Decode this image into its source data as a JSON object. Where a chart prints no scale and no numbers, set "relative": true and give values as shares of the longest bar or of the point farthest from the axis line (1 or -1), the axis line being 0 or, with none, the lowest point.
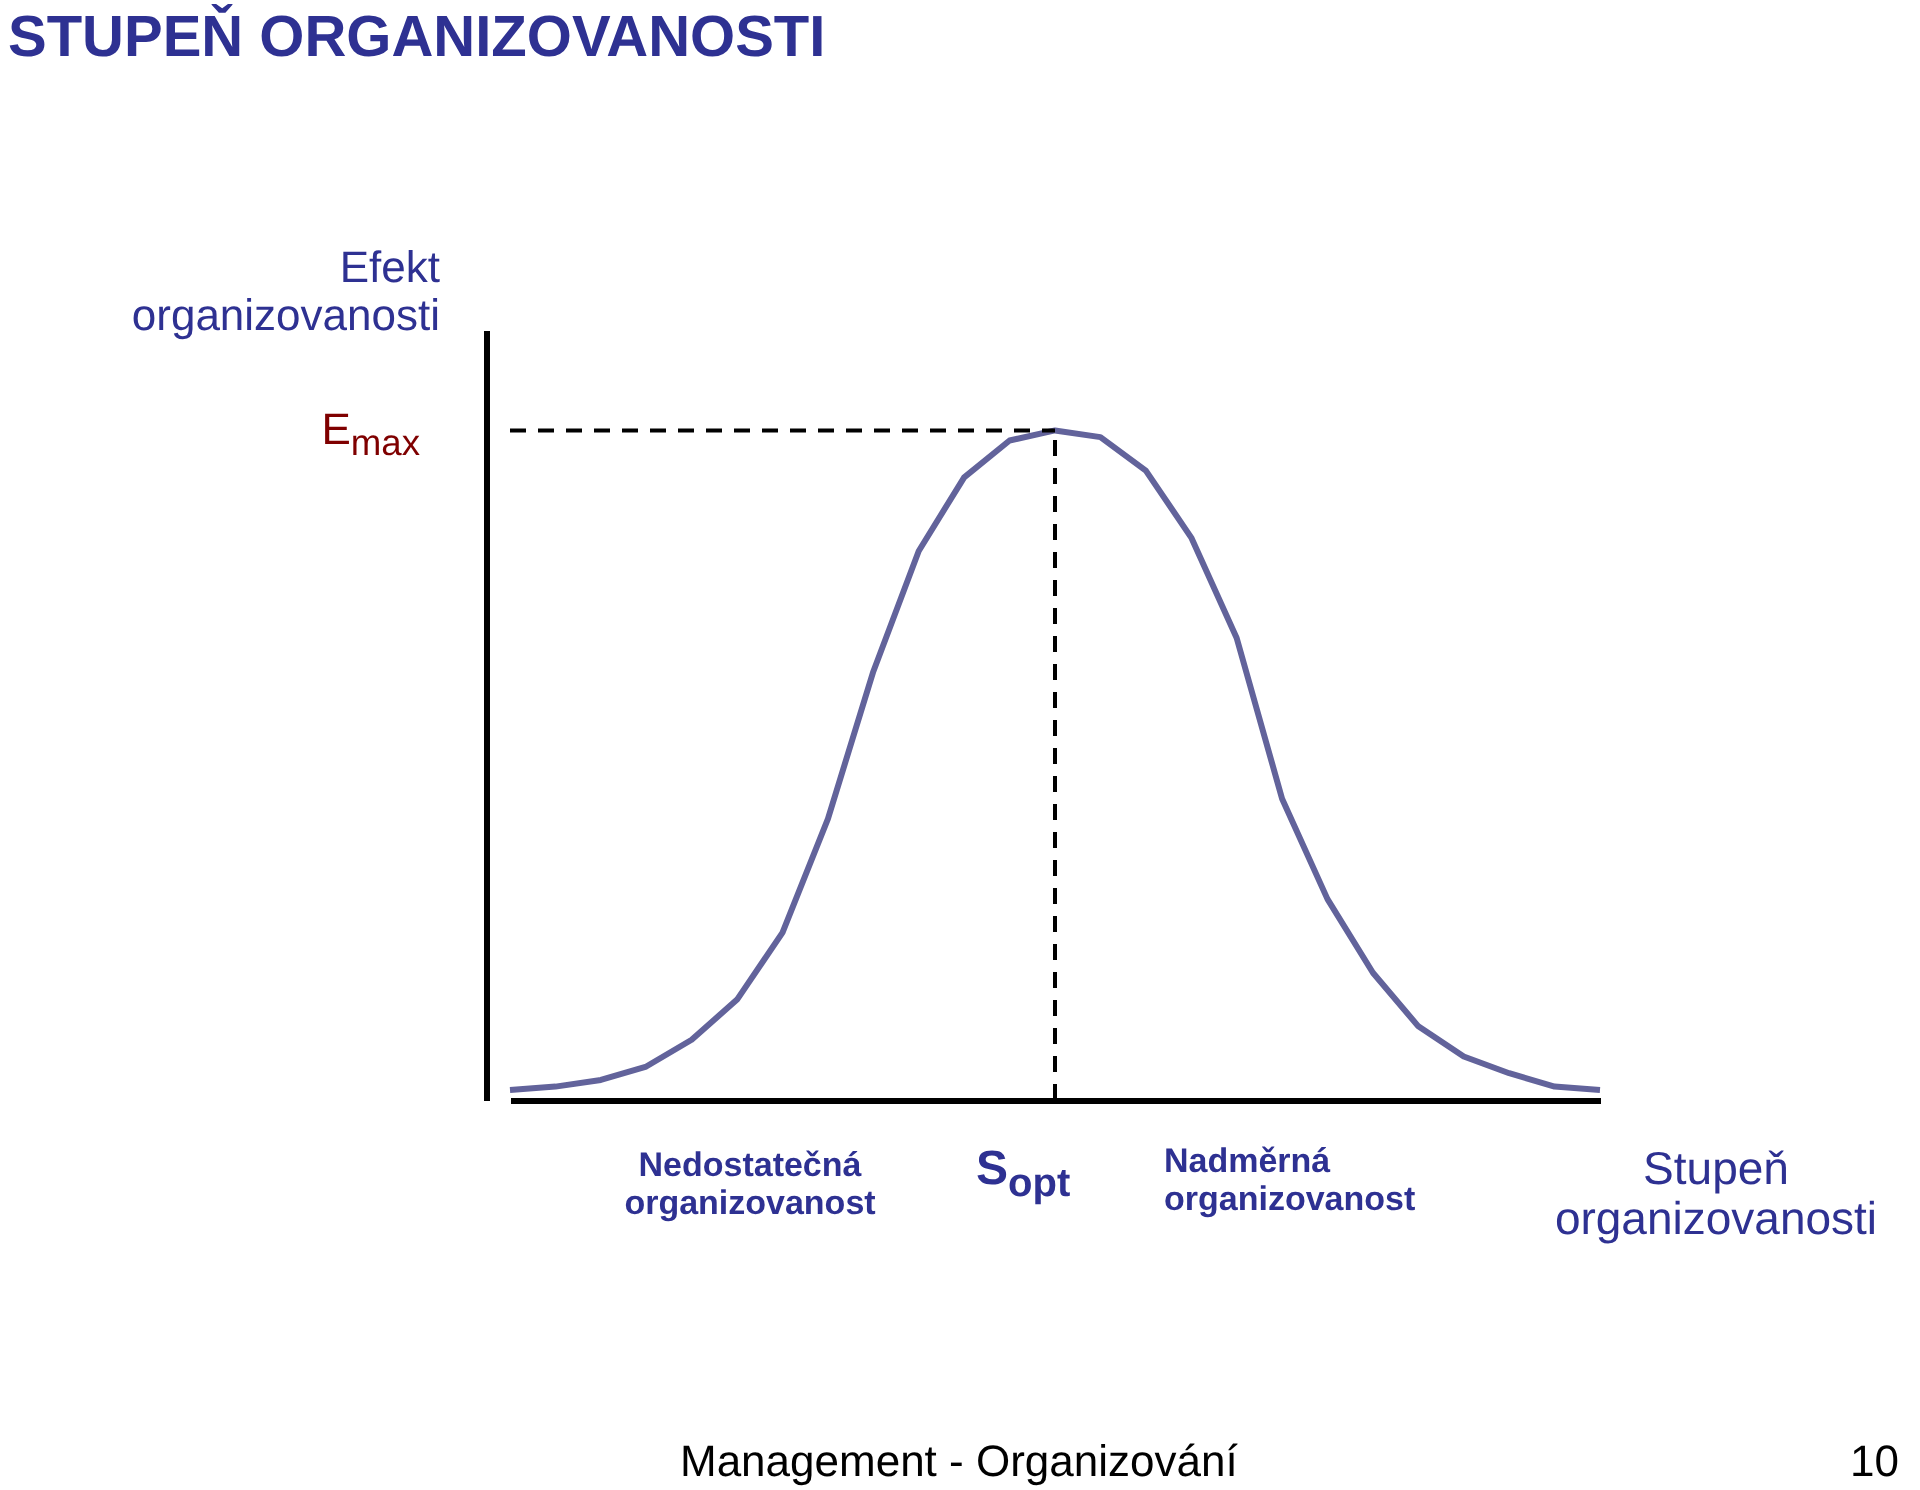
{
  "chart_data": {
    "type": "line",
    "relative": true,
    "title": "STUPEŇ ORGANIZOVANOSTI",
    "xlabel": "Stupeň organizovanosti",
    "ylabel": "Efekt organizovanosti",
    "categories": [
      null,
      null,
      null,
      null,
      null,
      null,
      null,
      null,
      null,
      null,
      null,
      null,
      null,
      null,
      null,
      null,
      null,
      null,
      null,
      null,
      null,
      null,
      null,
      null,
      null
    ],
    "series": [
      {
        "color": "#62639b",
        "values": [
          0.015,
          0.02,
          0.03,
          0.05,
          0.09,
          0.15,
          0.25,
          0.42,
          0.64,
          0.82,
          0.93,
          0.985,
          1,
          0.99,
          0.94,
          0.84,
          0.69,
          0.45,
          0.3,
          0.19,
          0.11,
          0.065,
          0.04,
          0.02,
          0.015
        ]
      }
    ],
    "ref_lines": [
      {
        "axis": "y",
        "value": 1,
        "label": "E$_{max}$",
        "line_style": "dashed"
      },
      {
        "axis": "x",
        "label": "S$_{opt}$",
        "line_style": "dashed"
      }
    ],
    "annotations": [
      "Nedostatečná organizovanost",
      "Nadměrná organizovanost",
      "Management - Organizování",
      "10"
    ],
    "grid": false,
    "tick_labels": false,
    "marker": "none",
    "line_style": "solid"
  }
}
